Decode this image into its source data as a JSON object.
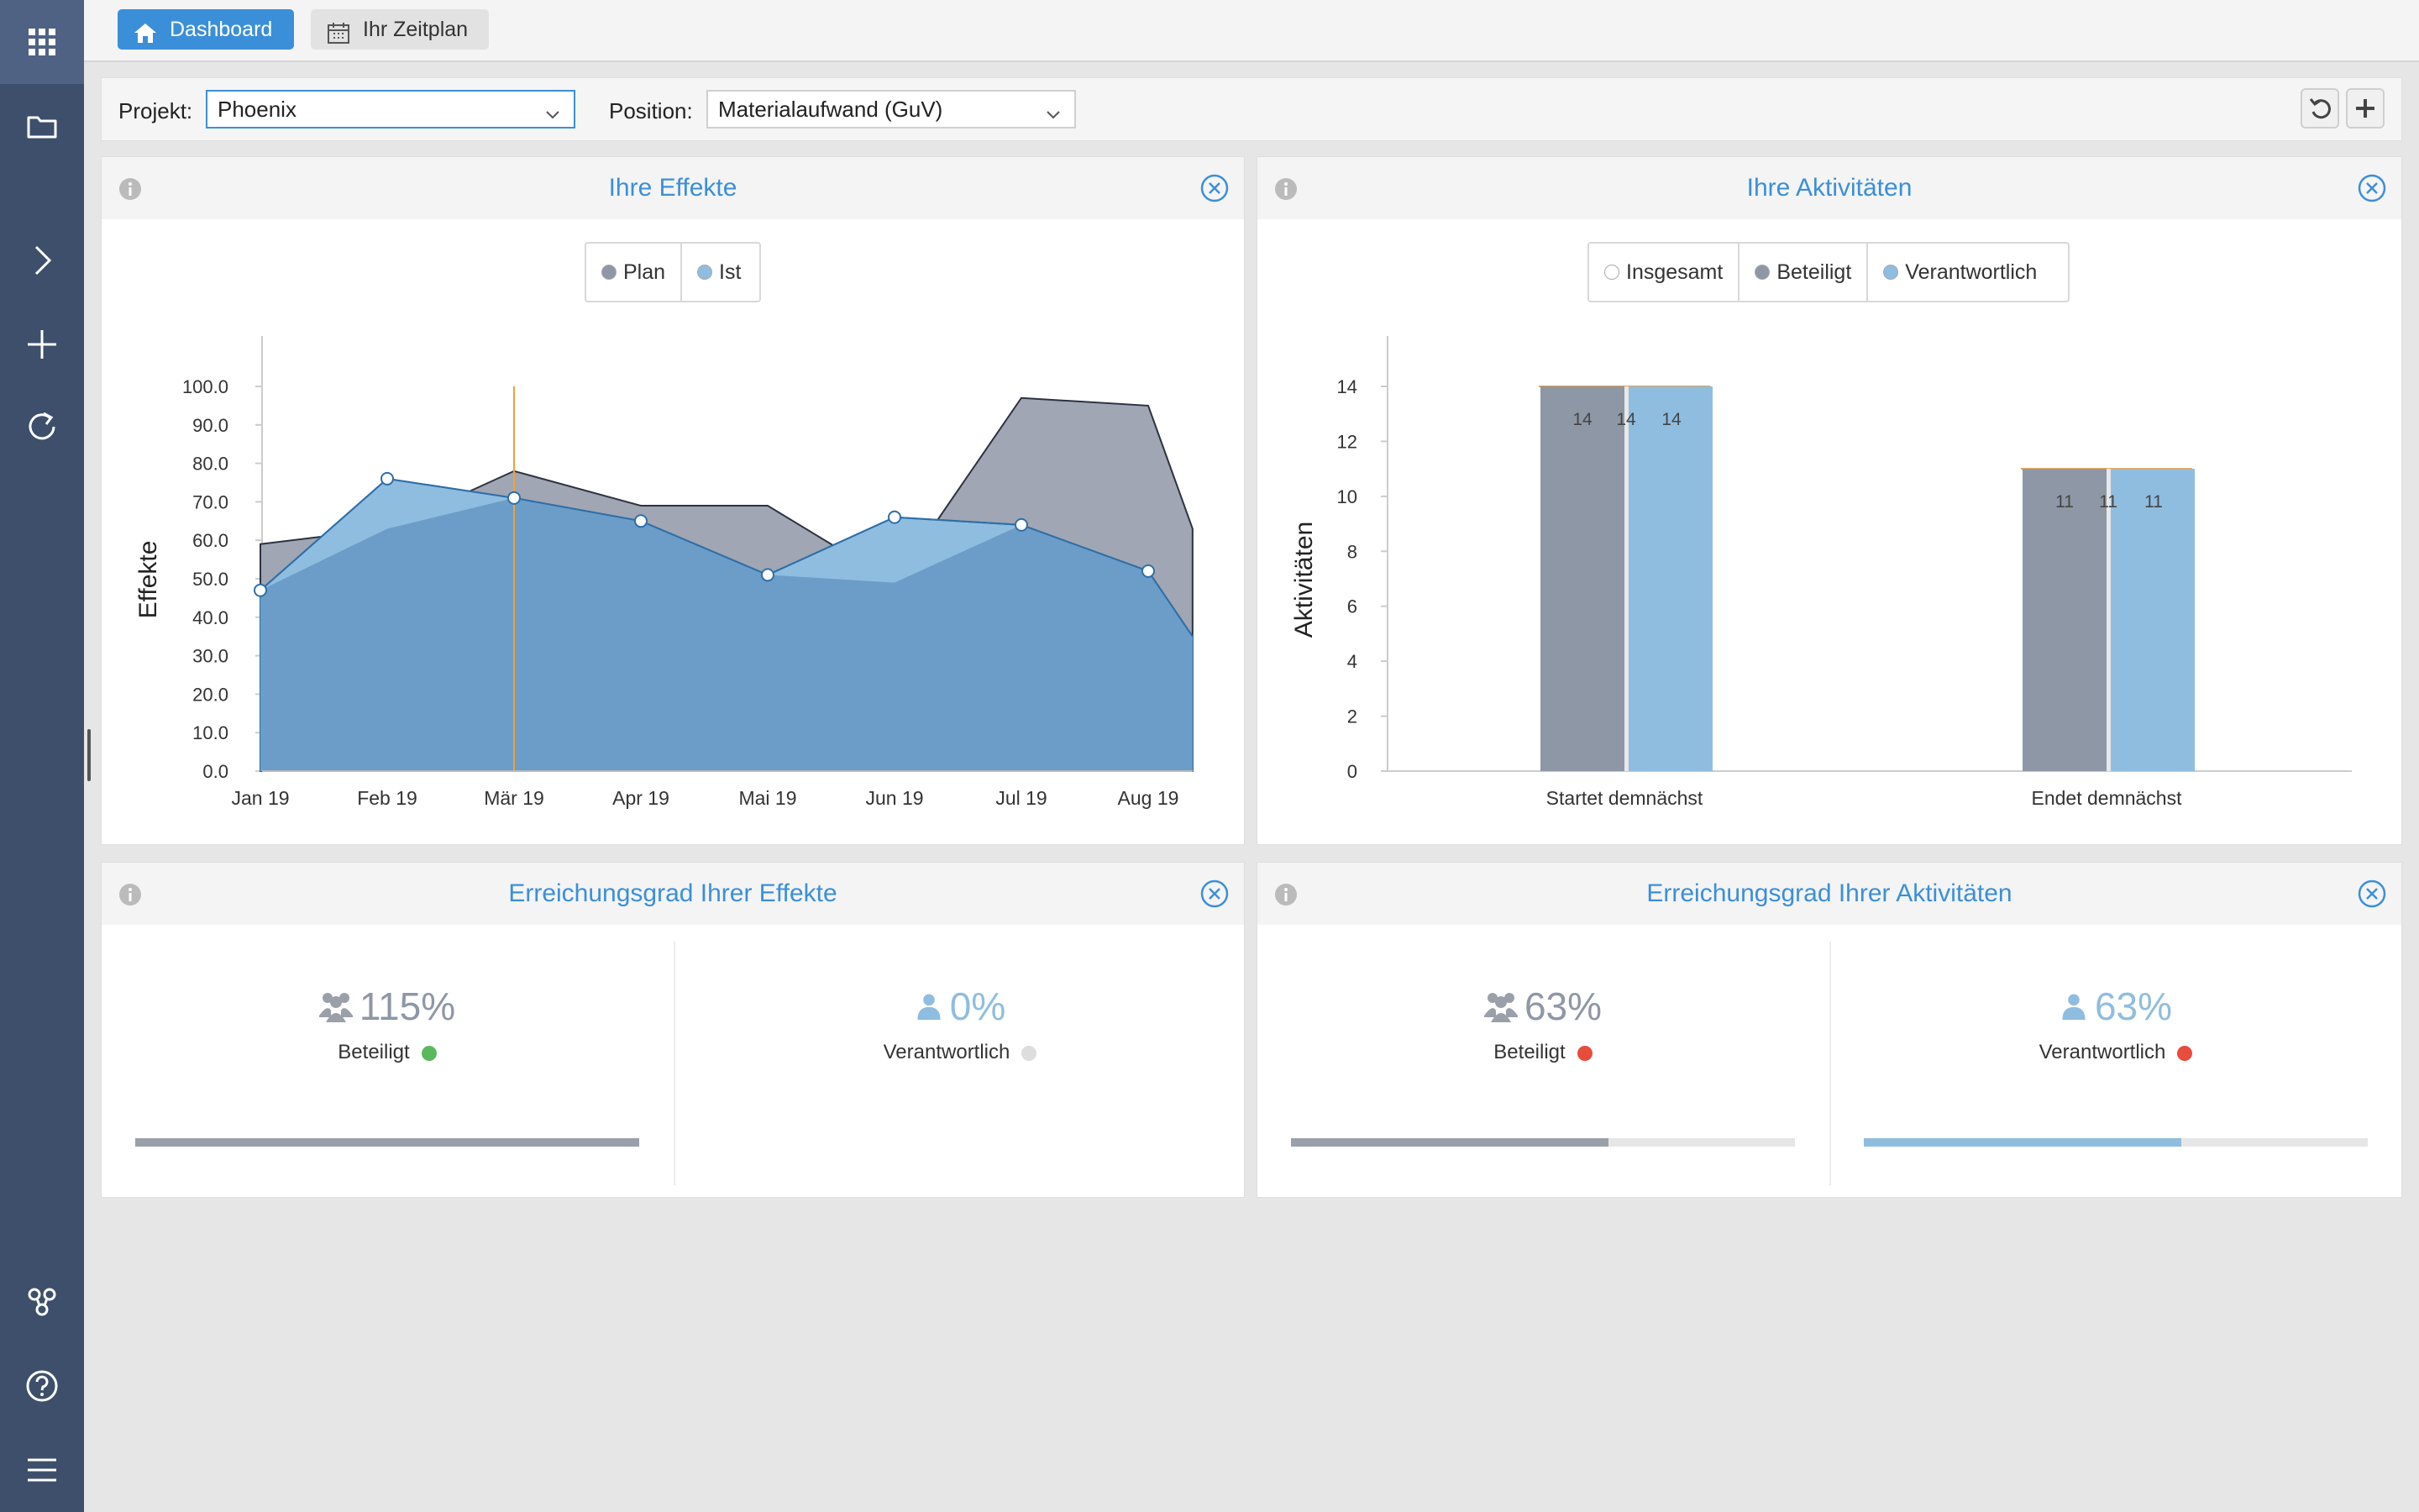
{
  "tabs": {
    "dashboard": "Dashboard",
    "schedule": "Ihr Zeitplan"
  },
  "filters": {
    "project_label": "Projekt:",
    "project_value": "Phoenix",
    "position_label": "Position:",
    "position_value": "Materialaufwand (GuV)"
  },
  "sidebar": {
    "icons": [
      "apps-grid-icon",
      "folder-icon",
      "chevron-right-icon",
      "plus-icon",
      "refresh-icon",
      "share-nodes-icon",
      "help-icon",
      "menu-icon"
    ]
  },
  "panels": {
    "effects_title": "Ihre Effekte",
    "activities_title": "Ihre Aktivitäten",
    "effects_achievement_title": "Erreichungsgrad Ihrer Effekte",
    "activities_achievement_title": "Erreichungsgrad Ihrer Aktivitäten"
  },
  "effects_legend": [
    "Plan",
    "Ist"
  ],
  "activities_legend": [
    "Insgesamt",
    "Beteiligt",
    "Verantwortlich"
  ],
  "colors": {
    "accent": "#3b8fd9",
    "plan": "#8e97a6",
    "ist": "#6a9fcb",
    "ist_light": "#8fbde0",
    "marker": "#f0a040",
    "status_green": "#5cb85c",
    "status_red": "#e74c3c",
    "status_gray": "#dddddd"
  },
  "chart_data": [
    {
      "type": "area",
      "ylabel": "Effekte",
      "xlabel": "",
      "ylim": [
        0,
        100
      ],
      "yticks": [
        "0.0",
        "10.0",
        "20.0",
        "30.0",
        "40.0",
        "50.0",
        "60.0",
        "70.0",
        "80.0",
        "90.0",
        "100.0"
      ],
      "xticks": [
        "Jan 19",
        "Feb 19",
        "Mär 19",
        "Apr 19",
        "Mai 19",
        "Jun 19",
        "Jul 19",
        "Aug 19"
      ],
      "x": [
        0,
        1,
        2,
        3,
        4,
        5,
        6,
        7,
        7.35
      ],
      "series": [
        {
          "name": "Plan",
          "values": [
            59,
            63,
            78,
            69,
            69,
            49,
            97,
            95,
            63
          ]
        },
        {
          "name": "Ist",
          "values": [
            47,
            76,
            71,
            65,
            51,
            66,
            64,
            52,
            35
          ]
        }
      ],
      "ist_markers": [
        0,
        1,
        2,
        3,
        4,
        5,
        6,
        7
      ],
      "vertical_marker_x": 2
    },
    {
      "type": "bar",
      "ylabel": "Aktivitäten",
      "xlabel": "",
      "ylim": [
        0,
        16
      ],
      "yticks": [
        "0",
        "2",
        "4",
        "6",
        "8",
        "10",
        "12",
        "14"
      ],
      "categories": [
        "Startet demnächst",
        "Endet demnächst"
      ],
      "series": [
        {
          "name": "Insgesamt",
          "values": [
            14,
            11
          ]
        },
        {
          "name": "Beteiligt",
          "values": [
            14,
            11
          ]
        },
        {
          "name": "Verantwortlich",
          "values": [
            14,
            11
          ]
        }
      ]
    }
  ],
  "achievement_effects": {
    "beteiligt": {
      "value": "115%",
      "label": "Beteiligt",
      "fill": 1.0
    },
    "verantwortlich": {
      "value": "0%",
      "label": "Verantwortlich",
      "fill": 0.0
    }
  },
  "achievement_activities": {
    "beteiligt": {
      "value": "63%",
      "label": "Beteiligt",
      "fill": 0.63
    },
    "verantwortlich": {
      "value": "63%",
      "label": "Verantwortlich",
      "fill": 0.63
    }
  }
}
